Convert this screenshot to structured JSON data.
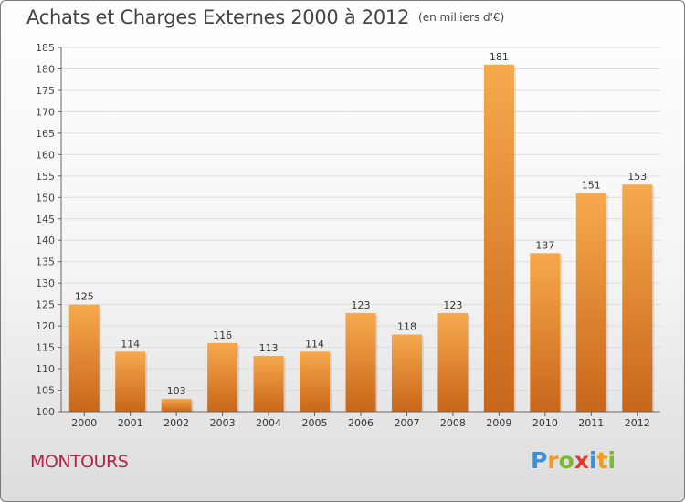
{
  "title": "Achats et Charges Externes 2000 à 2012",
  "unit_label": "(en milliers d'€)",
  "commune": "MONTOURS",
  "logo": {
    "letters": [
      "P",
      "r",
      "o",
      "x",
      "i",
      "t",
      "i"
    ],
    "colors": [
      "#3a8fd6",
      "#f29a1f",
      "#7cba2d",
      "#e03a2e",
      "#3a8fd6",
      "#f29a1f",
      "#7cba2d"
    ]
  },
  "colors": {
    "bar_top": "#f7a94c",
    "bar_bottom": "#c8661a",
    "grid": "#dddddd",
    "axis": "#666666"
  },
  "chart_data": {
    "type": "bar",
    "categories": [
      "2000",
      "2001",
      "2002",
      "2003",
      "2004",
      "2005",
      "2006",
      "2007",
      "2008",
      "2009",
      "2010",
      "2011",
      "2012"
    ],
    "values": [
      125,
      114,
      103,
      116,
      113,
      114,
      123,
      118,
      123,
      181,
      137,
      151,
      153
    ],
    "data_labels": [
      "125",
      "114",
      "103",
      "116",
      "113",
      "114",
      "123",
      "118",
      "123",
      "181",
      "137",
      "151",
      "153"
    ],
    "ylim": [
      100,
      185
    ],
    "yticks": [
      100,
      105,
      110,
      115,
      120,
      125,
      130,
      135,
      140,
      145,
      150,
      155,
      160,
      165,
      170,
      175,
      180,
      185
    ],
    "grid": true,
    "legend": "none"
  }
}
